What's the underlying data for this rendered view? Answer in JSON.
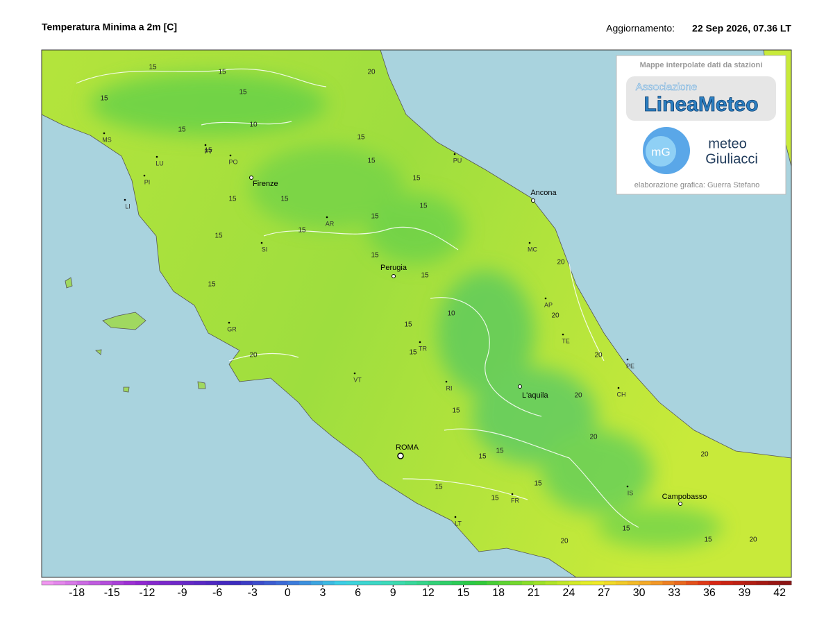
{
  "header": {
    "title": "Temperatura Minima a 2m [C]",
    "update_label": "Aggiornamento:",
    "update_value": "22 Sep 2026, 07.36 LT"
  },
  "logo_box": {
    "caption": "Mappe interpolate dati da stazioni",
    "association": "Associazione",
    "brand": "LineaMeteo",
    "mg_badge": "mG",
    "meteo": "meteo",
    "giuliacci": "Giuliacci",
    "credit": "elaborazione grafica: Guerra Stefano"
  },
  "cities": [
    "Firenze",
    "Perugia",
    "Ancona",
    "ROMA",
    "L'aquila",
    "Campobasso"
  ],
  "provinces": [
    "MS",
    "LU",
    "PI",
    "LI",
    "PT",
    "PO",
    "AR",
    "SI",
    "GR",
    "PU",
    "MC",
    "AP",
    "TE",
    "PE",
    "CH",
    "TR",
    "RI",
    "VT",
    "FR",
    "LT",
    "IS"
  ],
  "contour_labels": [
    "15",
    "15",
    "15",
    "15",
    "15",
    "10",
    "15",
    "15",
    "15",
    "15",
    "15",
    "15",
    "15",
    "15",
    "15",
    "15",
    "15",
    "15",
    "15",
    "10",
    "15",
    "15",
    "15",
    "15",
    "15",
    "15",
    "15",
    "15",
    "15",
    "15",
    "20",
    "20",
    "20",
    "20",
    "20",
    "20",
    "20",
    "20",
    "20",
    "20"
  ],
  "colorbar": {
    "lim": [
      -21,
      43
    ],
    "ticks": [
      -18,
      -15,
      -12,
      -9,
      -6,
      -3,
      0,
      3,
      6,
      9,
      12,
      15,
      18,
      21,
      24,
      27,
      30,
      33,
      36,
      39,
      42
    ]
  }
}
